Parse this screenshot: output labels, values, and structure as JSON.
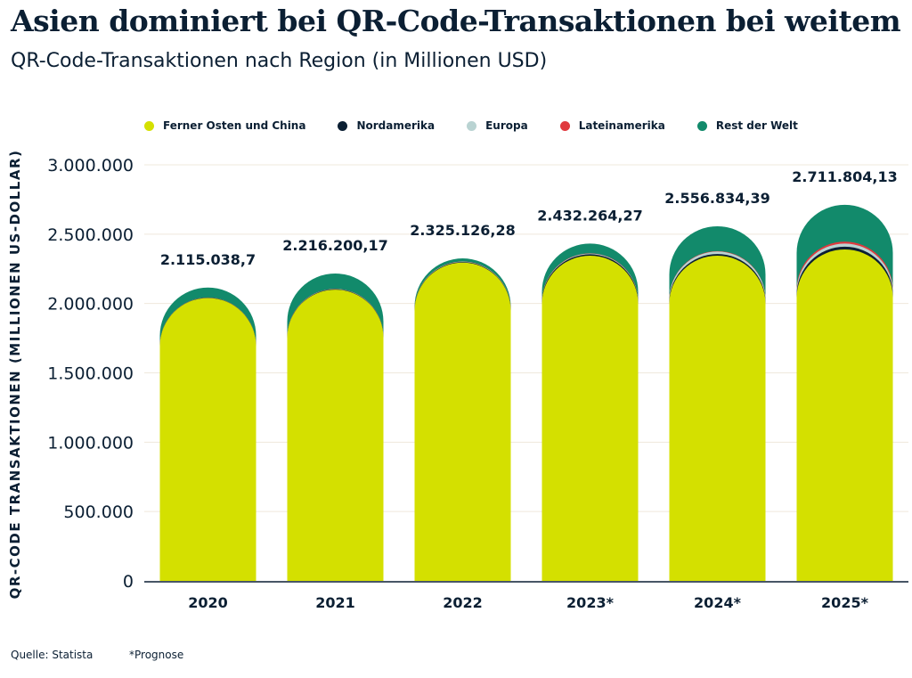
{
  "chart_data": {
    "type": "bar",
    "stacked": true,
    "title": "Asien dominiert bei QR-Code-Transaktionen bei weitem",
    "subtitle": "QR-Code-Transaktionen nach Region (in Millionen USD)",
    "ylabel": "QR-CODE TRANSAKTIONEN (MILLIONEN US-DOLLAR)",
    "xlabel": "",
    "ylim": [
      0,
      3000000
    ],
    "yticks": [
      0,
      500000,
      1000000,
      1500000,
      2000000,
      2500000,
      3000000
    ],
    "ytick_labels": [
      "0",
      "500.000",
      "1.000.000",
      "1.500.000",
      "2.000.000",
      "2.500.000",
      "3.000.000"
    ],
    "categories": [
      "2020",
      "2021",
      "2022",
      "2023*",
      "2024*",
      "2025*"
    ],
    "totals": [
      2115038.7,
      2216200.17,
      2325126.28,
      2432264.27,
      2556834.39,
      2711804.13
    ],
    "total_labels": [
      "2.115.038,7",
      "2.216.200,17",
      "2.325.126,28",
      "2.432.264,27",
      "2.556.834,39",
      "2.711.804,13"
    ],
    "series": [
      {
        "name": "Ferner Osten und China",
        "color": "#d4e000",
        "values": [
          2040000,
          2100000,
          2295000,
          2345000,
          2345000,
          2390000
        ]
      },
      {
        "name": "Nordamerika",
        "color": "#0b1f33",
        "values": [
          2000,
          3000,
          4000,
          10000,
          12000,
          20000
        ]
      },
      {
        "name": "Europa",
        "color": "#b9d3d2",
        "values": [
          1000,
          2000,
          3000,
          5000,
          18000,
          22000
        ]
      },
      {
        "name": "Lateinamerika",
        "color": "#e0393e",
        "values": [
          500,
          1000,
          1000,
          2000,
          3000,
          14000
        ]
      },
      {
        "name": "Rest der Welt",
        "color": "#128a6b",
        "values": [
          71538.7,
          110200.17,
          22126.28,
          70264.27,
          178834.39,
          265804.13
        ]
      }
    ],
    "grid": true,
    "legend_position": "top-left"
  },
  "footer": {
    "source": "Quelle: Statista",
    "note": "*Prognose"
  }
}
